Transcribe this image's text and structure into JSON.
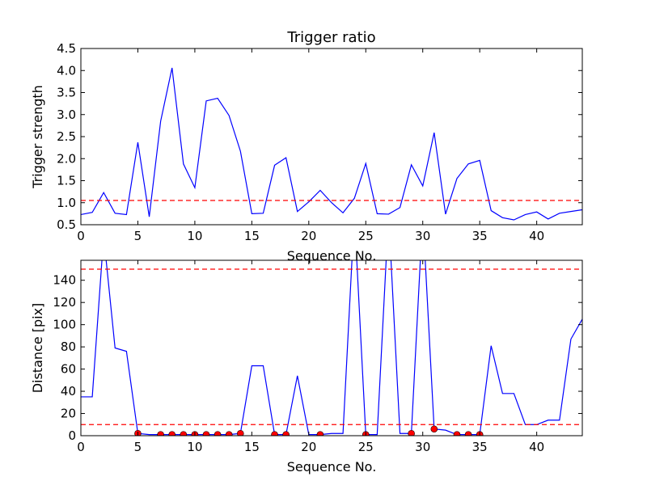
{
  "chart_data": [
    {
      "type": "line",
      "title": "Trigger ratio",
      "xlabel": "Sequence No.",
      "ylabel": "Trigger strength",
      "xlim": [
        0,
        44
      ],
      "ylim": [
        0.5,
        4.5
      ],
      "xticks": [
        0,
        5,
        10,
        15,
        20,
        25,
        30,
        35,
        40
      ],
      "yticks": [
        0.5,
        1.0,
        1.5,
        2.0,
        2.5,
        3.0,
        3.5,
        4.0,
        4.5
      ],
      "line_color": "#0000ff",
      "threshold_color": "#ff0000",
      "thresholds": [
        1.05
      ],
      "x": [
        0,
        1,
        2,
        3,
        4,
        5,
        6,
        7,
        8,
        9,
        10,
        11,
        12,
        13,
        14,
        15,
        16,
        17,
        18,
        19,
        20,
        21,
        22,
        23,
        24,
        25,
        26,
        27,
        28,
        29,
        30,
        31,
        32,
        33,
        34,
        35,
        36,
        37,
        38,
        39,
        40,
        41,
        42,
        43,
        44
      ],
      "values": [
        0.73,
        0.78,
        1.23,
        0.76,
        0.73,
        2.37,
        0.68,
        2.85,
        4.06,
        1.88,
        1.34,
        3.31,
        3.37,
        2.98,
        2.17,
        0.75,
        0.76,
        1.85,
        2.02,
        0.8,
        1.02,
        1.28,
        1.0,
        0.77,
        1.1,
        1.89,
        0.75,
        0.74,
        0.89,
        1.86,
        1.38,
        2.59,
        0.74,
        1.55,
        1.88,
        1.96,
        0.82,
        0.66,
        0.61,
        0.73,
        0.79,
        0.63,
        0.76,
        0.8,
        0.84
      ],
      "markers": []
    },
    {
      "type": "line",
      "title": "",
      "xlabel": "Sequence No.",
      "ylabel": "Distance [pix]",
      "xlim": [
        0,
        44
      ],
      "ylim": [
        0,
        158
      ],
      "xticks": [
        0,
        5,
        10,
        15,
        20,
        25,
        30,
        35,
        40
      ],
      "yticks": [
        0,
        20,
        40,
        60,
        80,
        100,
        120,
        140
      ],
      "line_color": "#0000ff",
      "threshold_color": "#ff0000",
      "marker_color": "#ff0000",
      "thresholds": [
        10,
        150
      ],
      "x": [
        0,
        1,
        2,
        3,
        4,
        5,
        6,
        7,
        8,
        9,
        10,
        11,
        12,
        13,
        14,
        15,
        16,
        17,
        18,
        19,
        20,
        21,
        22,
        23,
        24,
        25,
        26,
        27,
        28,
        29,
        30,
        31,
        32,
        33,
        34,
        35,
        36,
        37,
        38,
        39,
        40,
        41,
        42,
        43,
        44
      ],
      "values": [
        35,
        35,
        180,
        79,
        76,
        2,
        1,
        1,
        1,
        1,
        1,
        1,
        1,
        1,
        2,
        63,
        63,
        1,
        1,
        54,
        1,
        1,
        2,
        2,
        200,
        1,
        1,
        200,
        2,
        2,
        200,
        6,
        5,
        1,
        1,
        1,
        81,
        38,
        38,
        10,
        10,
        14,
        14,
        87,
        105
      ],
      "markers": [
        [
          5,
          2
        ],
        [
          7,
          1
        ],
        [
          8,
          1
        ],
        [
          9,
          1
        ],
        [
          10,
          1
        ],
        [
          11,
          1
        ],
        [
          12,
          1
        ],
        [
          13,
          1
        ],
        [
          14,
          2
        ],
        [
          17,
          1
        ],
        [
          18,
          1
        ],
        [
          21,
          1
        ],
        [
          25,
          1
        ],
        [
          29,
          2
        ],
        [
          31,
          6
        ],
        [
          33,
          1
        ],
        [
          34,
          1
        ],
        [
          35,
          1
        ]
      ]
    }
  ]
}
